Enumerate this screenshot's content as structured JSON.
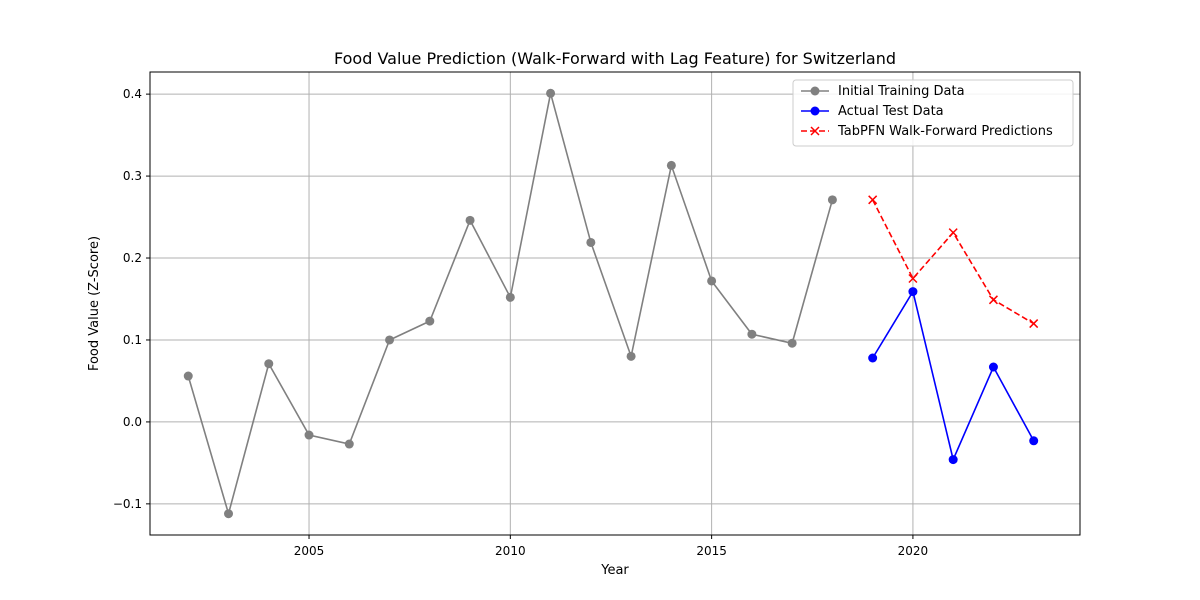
{
  "chart_data": {
    "type": "line",
    "title": "Food Value Prediction (Walk-Forward with Lag Feature) for Switzerland",
    "xlabel": "Year",
    "ylabel": "Food Value (Z-Score)",
    "xlim": [
      2001.05,
      2024.15
    ],
    "ylim": [
      -0.138,
      0.427
    ],
    "xticks": [
      2005,
      2010,
      2015,
      2020
    ],
    "yticks": [
      -0.1,
      0.0,
      0.1,
      0.2,
      0.3,
      0.4
    ],
    "ytick_labels": [
      "−0.1",
      "0.0",
      "0.1",
      "0.2",
      "0.3",
      "0.4"
    ],
    "grid": true,
    "legend_position": "top-right",
    "series": [
      {
        "name": "Initial Training Data",
        "color": "#808080",
        "marker": "circle",
        "linestyle": "solid",
        "x": [
          2002,
          2003,
          2004,
          2005,
          2006,
          2007,
          2008,
          2009,
          2010,
          2011,
          2012,
          2013,
          2014,
          2015,
          2016,
          2017,
          2018
        ],
        "y": [
          0.056,
          -0.112,
          0.071,
          -0.016,
          -0.027,
          0.1,
          0.123,
          0.246,
          0.152,
          0.401,
          0.219,
          0.08,
          0.313,
          0.172,
          0.107,
          0.096,
          0.271
        ]
      },
      {
        "name": "Actual Test Data",
        "color": "#0000ff",
        "marker": "circle",
        "linestyle": "solid",
        "x": [
          2019,
          2020,
          2021,
          2022,
          2023
        ],
        "y": [
          0.078,
          0.159,
          -0.046,
          0.067,
          -0.023
        ]
      },
      {
        "name": "TabPFN Walk-Forward Predictions",
        "color": "#ff0000",
        "marker": "x",
        "linestyle": "dashed",
        "x": [
          2019,
          2020,
          2021,
          2022,
          2023
        ],
        "y": [
          0.271,
          0.175,
          0.231,
          0.149,
          0.12
        ]
      }
    ]
  }
}
